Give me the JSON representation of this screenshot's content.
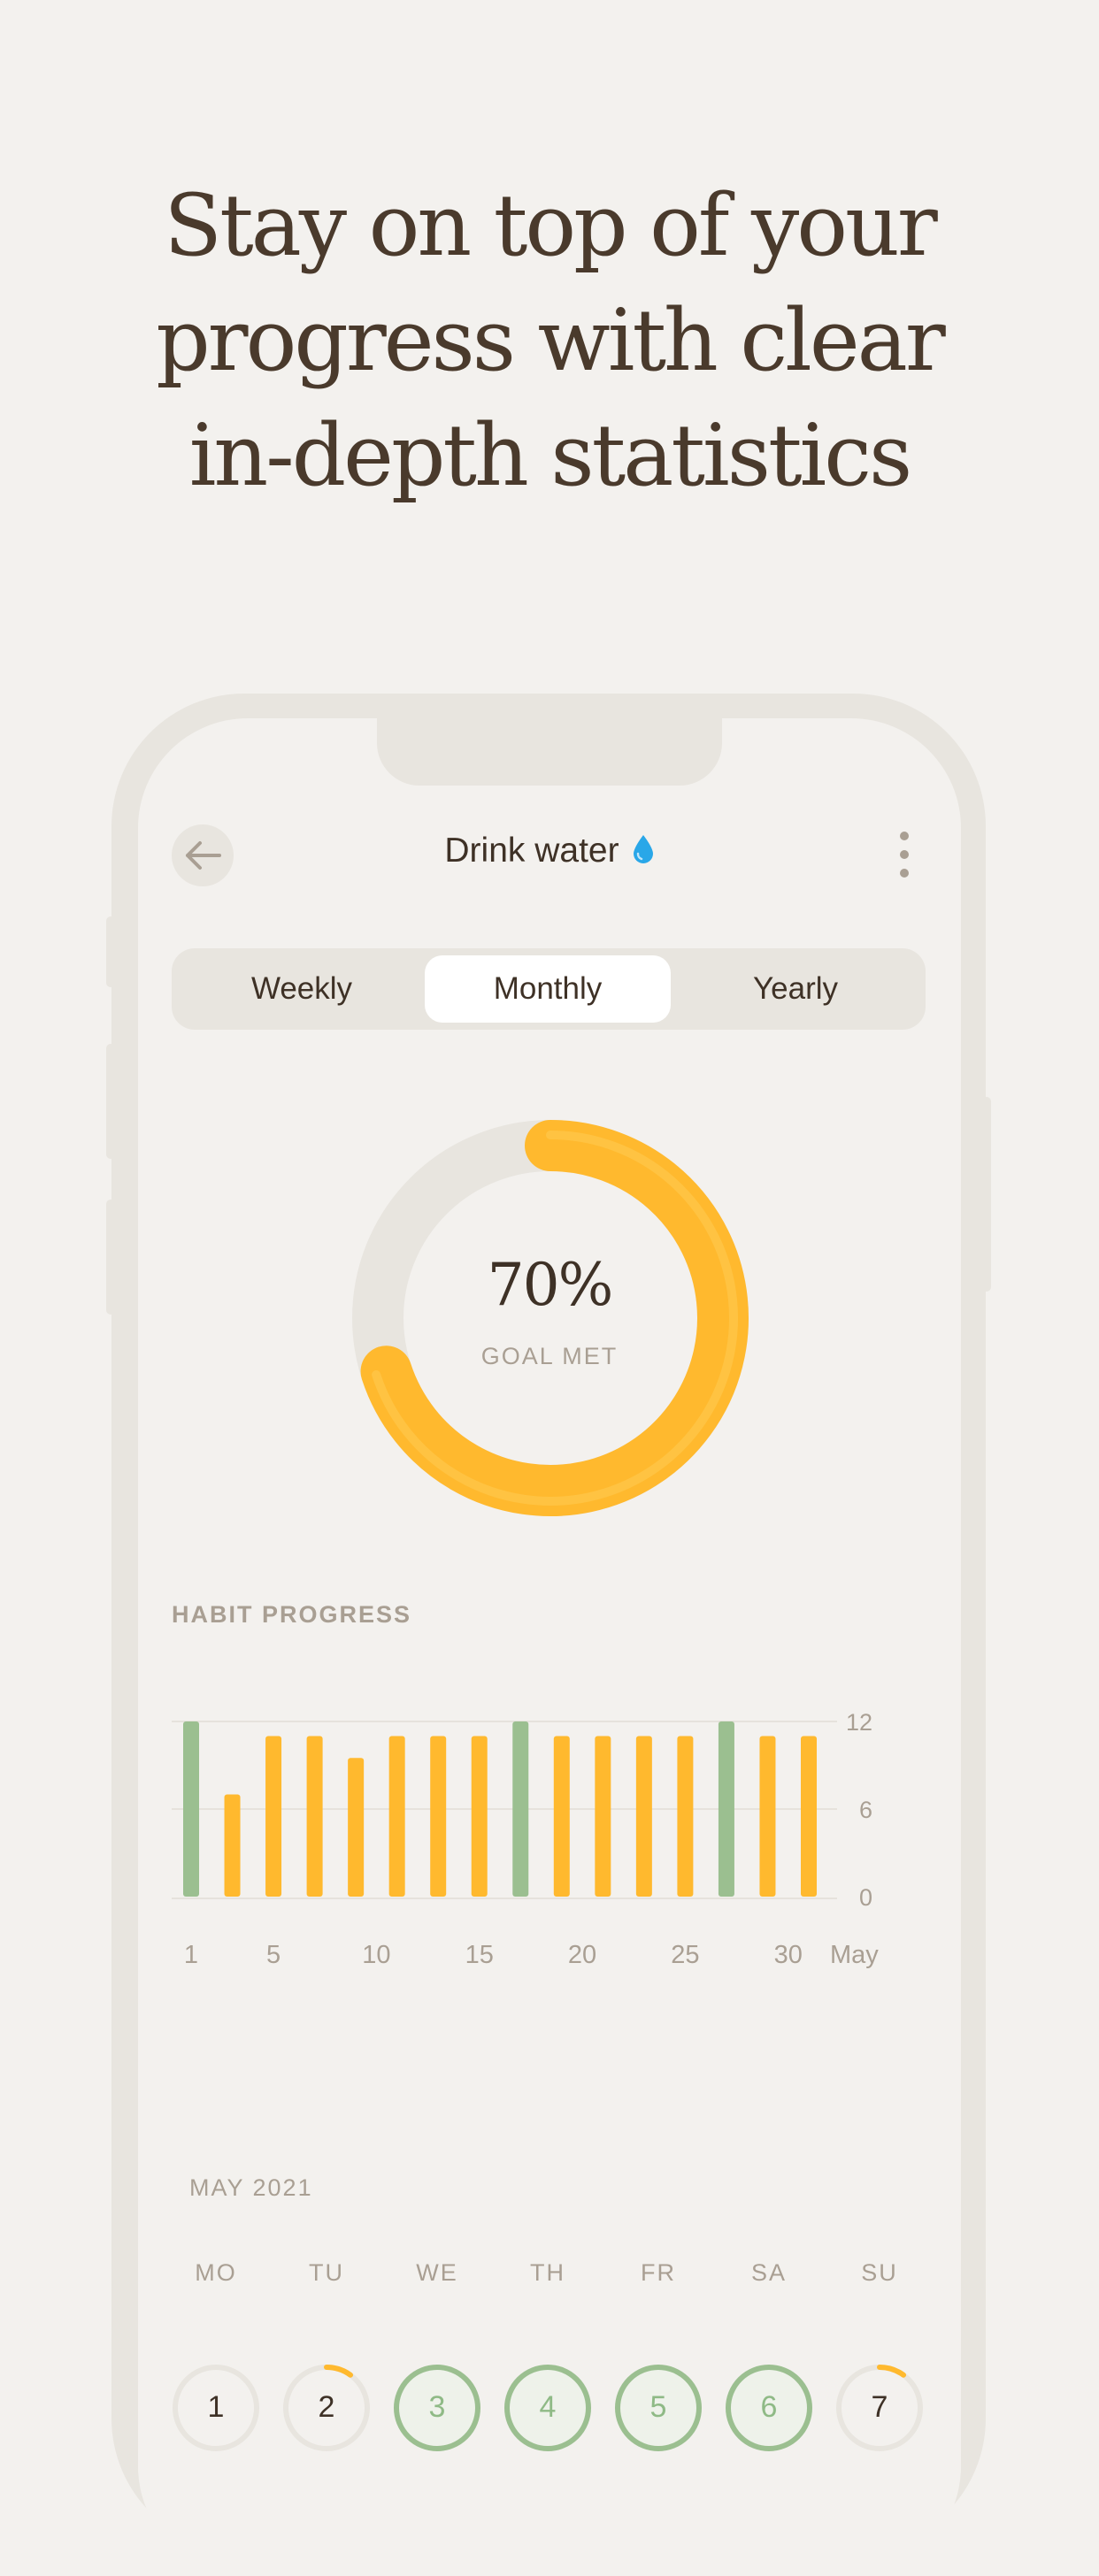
{
  "headline": {
    "line1": "Stay on top of your",
    "line2": "progress with clear",
    "line3": "in-depth statistics"
  },
  "header": {
    "title": "Drink water",
    "back_icon": "arrow-left-icon",
    "drop_icon": "water-drop-icon",
    "more_icon": "more-vertical-icon"
  },
  "tabs": [
    {
      "label": "Weekly",
      "active": false
    },
    {
      "label": "Monthly",
      "active": true
    },
    {
      "label": "Yearly",
      "active": false
    }
  ],
  "goal": {
    "value": "70%",
    "percent": 70,
    "label": "GOAL MET"
  },
  "colors": {
    "accent": "#ffb92e",
    "success": "#9bbf90",
    "track": "#e8e5df"
  },
  "habit_progress": {
    "title": "HABIT PROGRESS"
  },
  "chart_data": {
    "type": "bar",
    "x": [
      1,
      3,
      5,
      7,
      9,
      11,
      13,
      15,
      17,
      19,
      21,
      23,
      25,
      27,
      29,
      31
    ],
    "values": [
      12,
      7,
      11,
      11,
      9.5,
      11,
      11,
      11,
      12,
      11,
      11,
      11,
      11,
      12,
      11,
      11
    ],
    "goal_met": [
      true,
      false,
      false,
      false,
      false,
      false,
      false,
      false,
      true,
      false,
      false,
      false,
      false,
      true,
      false,
      false
    ],
    "x_ticks": [
      "1",
      "5",
      "10",
      "15",
      "20",
      "25",
      "30"
    ],
    "x_unit": "May",
    "y_ticks": [
      "0",
      "6",
      "12"
    ],
    "ylim": [
      0,
      12
    ],
    "grid": true
  },
  "calendar": {
    "month": "MAY 2021",
    "weekdays": [
      "MO",
      "TU",
      "WE",
      "TH",
      "FR",
      "SA",
      "SU"
    ],
    "days": [
      {
        "num": "1",
        "state": "none",
        "progress": 0
      },
      {
        "num": "2",
        "state": "partial",
        "progress": 0.1
      },
      {
        "num": "3",
        "state": "complete",
        "progress": 1
      },
      {
        "num": "4",
        "state": "complete",
        "progress": 1
      },
      {
        "num": "5",
        "state": "complete",
        "progress": 1
      },
      {
        "num": "6",
        "state": "complete",
        "progress": 1
      },
      {
        "num": "7",
        "state": "partial",
        "progress": 0.1
      }
    ]
  }
}
